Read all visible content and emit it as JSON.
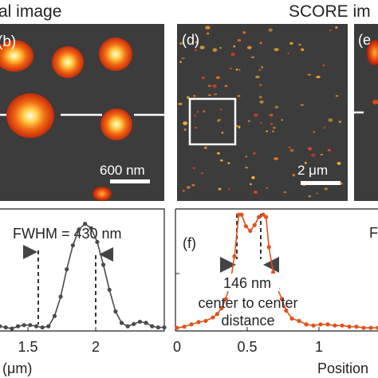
{
  "headers": {
    "left": "al image",
    "right": "SCORE im"
  },
  "panels": {
    "b": {
      "label": "(b)",
      "scalebar": "600 nm"
    },
    "d": {
      "label": "(d)",
      "scalebar": "2 μm"
    },
    "e": {
      "label": "(e"
    }
  },
  "annotations": {
    "fwhm_left": "FWHM = 430 nm",
    "fwhm_right": "F",
    "distance_value": "146 nm",
    "distance_line1": "center to center",
    "distance_line2": "distance",
    "f_label": "(f)"
  },
  "colors": {
    "left_curve": "#4a4a4a",
    "right_curve": "#e0531c",
    "image_bg": "#3c3c3c"
  },
  "chart_data": [
    {
      "type": "line",
      "panel": "left profile",
      "title": "",
      "xlabel": "n (μm)",
      "ylabel": "",
      "x_tick_labels": [
        "1.5",
        "2"
      ],
      "xlim": [
        1.05,
        2.45
      ],
      "ylim": [
        0,
        1.05
      ],
      "series": [
        {
          "x": [
            1.05,
            1.1,
            1.15,
            1.2,
            1.25,
            1.3,
            1.35,
            1.4,
            1.45,
            1.5,
            1.55,
            1.6,
            1.65,
            1.7,
            1.75,
            1.8,
            1.85,
            1.9,
            1.95,
            2.0,
            2.05,
            2.1,
            2.15,
            2.2,
            2.25,
            2.3,
            2.35,
            2.4,
            2.45
          ],
          "values": [
            0.03,
            0.02,
            0.01,
            0.0,
            0.02,
            0.03,
            0.03,
            0.02,
            0.01,
            0.02,
            0.11,
            0.28,
            0.52,
            0.73,
            0.87,
            0.92,
            0.88,
            0.76,
            0.56,
            0.34,
            0.15,
            0.05,
            0.02,
            0.04,
            0.06,
            0.05,
            0.02,
            0.01,
            0.01
          ]
        }
      ]
    },
    {
      "type": "line",
      "panel": "(f)",
      "title": "",
      "xlabel": "Position",
      "ylabel": "",
      "x_tick_labels": [
        "0",
        "0.5",
        "1"
      ],
      "xlim": [
        0,
        1.4
      ],
      "ylim": [
        0,
        1.05
      ],
      "series": [
        {
          "x": [
            0.0,
            0.05,
            0.1,
            0.15,
            0.2,
            0.25,
            0.28,
            0.31,
            0.34,
            0.37,
            0.4,
            0.43,
            0.45,
            0.48,
            0.51,
            0.54,
            0.57,
            0.6,
            0.62,
            0.64,
            0.67,
            0.7,
            0.73,
            0.76,
            0.8,
            0.85,
            0.9,
            0.95,
            1.0,
            1.05,
            1.1,
            1.15,
            1.2,
            1.25,
            1.3,
            1.35,
            1.4
          ],
          "values": [
            0.02,
            0.03,
            0.05,
            0.07,
            0.08,
            0.11,
            0.14,
            0.19,
            0.27,
            0.4,
            0.64,
            1.0,
            1.0,
            0.9,
            0.86,
            0.91,
            0.98,
            1.0,
            0.98,
            0.72,
            0.5,
            0.36,
            0.27,
            0.17,
            0.1,
            0.08,
            0.05,
            0.04,
            0.05,
            0.05,
            0.04,
            0.04,
            0.03,
            0.03,
            0.02,
            0.02,
            0.02
          ]
        }
      ]
    }
  ]
}
